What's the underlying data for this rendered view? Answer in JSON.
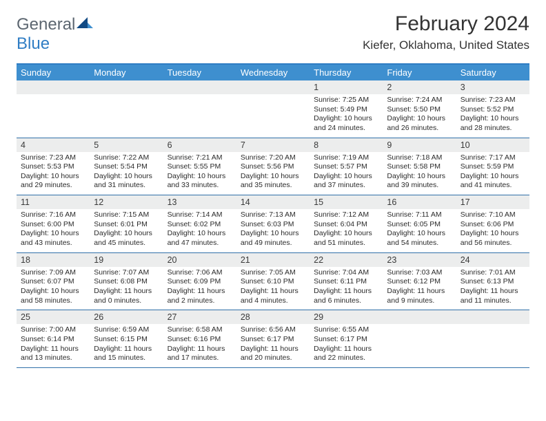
{
  "brand": {
    "text1": "General",
    "text2": "Blue"
  },
  "title": "February 2024",
  "location": "Kiefer, Oklahoma, United States",
  "labels": {
    "sunrise": "Sunrise:",
    "sunset": "Sunset:",
    "daylight": "Daylight:"
  },
  "colors": {
    "header_bar": "#3e8fcf",
    "rule": "#2f6fa8",
    "daynum_bg": "#eceded",
    "logo_gray": "#5c6670",
    "logo_blue": "#2f7dc4"
  },
  "day_headers": [
    "Sunday",
    "Monday",
    "Tuesday",
    "Wednesday",
    "Thursday",
    "Friday",
    "Saturday"
  ],
  "weeks": [
    [
      {
        "n": "",
        "sunrise": "",
        "sunset": "",
        "daylight": ""
      },
      {
        "n": "",
        "sunrise": "",
        "sunset": "",
        "daylight": ""
      },
      {
        "n": "",
        "sunrise": "",
        "sunset": "",
        "daylight": ""
      },
      {
        "n": "",
        "sunrise": "",
        "sunset": "",
        "daylight": ""
      },
      {
        "n": "1",
        "sunrise": "7:25 AM",
        "sunset": "5:49 PM",
        "daylight": "10 hours and 24 minutes."
      },
      {
        "n": "2",
        "sunrise": "7:24 AM",
        "sunset": "5:50 PM",
        "daylight": "10 hours and 26 minutes."
      },
      {
        "n": "3",
        "sunrise": "7:23 AM",
        "sunset": "5:52 PM",
        "daylight": "10 hours and 28 minutes."
      }
    ],
    [
      {
        "n": "4",
        "sunrise": "7:23 AM",
        "sunset": "5:53 PM",
        "daylight": "10 hours and 29 minutes."
      },
      {
        "n": "5",
        "sunrise": "7:22 AM",
        "sunset": "5:54 PM",
        "daylight": "10 hours and 31 minutes."
      },
      {
        "n": "6",
        "sunrise": "7:21 AM",
        "sunset": "5:55 PM",
        "daylight": "10 hours and 33 minutes."
      },
      {
        "n": "7",
        "sunrise": "7:20 AM",
        "sunset": "5:56 PM",
        "daylight": "10 hours and 35 minutes."
      },
      {
        "n": "8",
        "sunrise": "7:19 AM",
        "sunset": "5:57 PM",
        "daylight": "10 hours and 37 minutes."
      },
      {
        "n": "9",
        "sunrise": "7:18 AM",
        "sunset": "5:58 PM",
        "daylight": "10 hours and 39 minutes."
      },
      {
        "n": "10",
        "sunrise": "7:17 AM",
        "sunset": "5:59 PM",
        "daylight": "10 hours and 41 minutes."
      }
    ],
    [
      {
        "n": "11",
        "sunrise": "7:16 AM",
        "sunset": "6:00 PM",
        "daylight": "10 hours and 43 minutes."
      },
      {
        "n": "12",
        "sunrise": "7:15 AM",
        "sunset": "6:01 PM",
        "daylight": "10 hours and 45 minutes."
      },
      {
        "n": "13",
        "sunrise": "7:14 AM",
        "sunset": "6:02 PM",
        "daylight": "10 hours and 47 minutes."
      },
      {
        "n": "14",
        "sunrise": "7:13 AM",
        "sunset": "6:03 PM",
        "daylight": "10 hours and 49 minutes."
      },
      {
        "n": "15",
        "sunrise": "7:12 AM",
        "sunset": "6:04 PM",
        "daylight": "10 hours and 51 minutes."
      },
      {
        "n": "16",
        "sunrise": "7:11 AM",
        "sunset": "6:05 PM",
        "daylight": "10 hours and 54 minutes."
      },
      {
        "n": "17",
        "sunrise": "7:10 AM",
        "sunset": "6:06 PM",
        "daylight": "10 hours and 56 minutes."
      }
    ],
    [
      {
        "n": "18",
        "sunrise": "7:09 AM",
        "sunset": "6:07 PM",
        "daylight": "10 hours and 58 minutes."
      },
      {
        "n": "19",
        "sunrise": "7:07 AM",
        "sunset": "6:08 PM",
        "daylight": "11 hours and 0 minutes."
      },
      {
        "n": "20",
        "sunrise": "7:06 AM",
        "sunset": "6:09 PM",
        "daylight": "11 hours and 2 minutes."
      },
      {
        "n": "21",
        "sunrise": "7:05 AM",
        "sunset": "6:10 PM",
        "daylight": "11 hours and 4 minutes."
      },
      {
        "n": "22",
        "sunrise": "7:04 AM",
        "sunset": "6:11 PM",
        "daylight": "11 hours and 6 minutes."
      },
      {
        "n": "23",
        "sunrise": "7:03 AM",
        "sunset": "6:12 PM",
        "daylight": "11 hours and 9 minutes."
      },
      {
        "n": "24",
        "sunrise": "7:01 AM",
        "sunset": "6:13 PM",
        "daylight": "11 hours and 11 minutes."
      }
    ],
    [
      {
        "n": "25",
        "sunrise": "7:00 AM",
        "sunset": "6:14 PM",
        "daylight": "11 hours and 13 minutes."
      },
      {
        "n": "26",
        "sunrise": "6:59 AM",
        "sunset": "6:15 PM",
        "daylight": "11 hours and 15 minutes."
      },
      {
        "n": "27",
        "sunrise": "6:58 AM",
        "sunset": "6:16 PM",
        "daylight": "11 hours and 17 minutes."
      },
      {
        "n": "28",
        "sunrise": "6:56 AM",
        "sunset": "6:17 PM",
        "daylight": "11 hours and 20 minutes."
      },
      {
        "n": "29",
        "sunrise": "6:55 AM",
        "sunset": "6:17 PM",
        "daylight": "11 hours and 22 minutes."
      },
      {
        "n": "",
        "sunrise": "",
        "sunset": "",
        "daylight": ""
      },
      {
        "n": "",
        "sunrise": "",
        "sunset": "",
        "daylight": ""
      }
    ]
  ]
}
